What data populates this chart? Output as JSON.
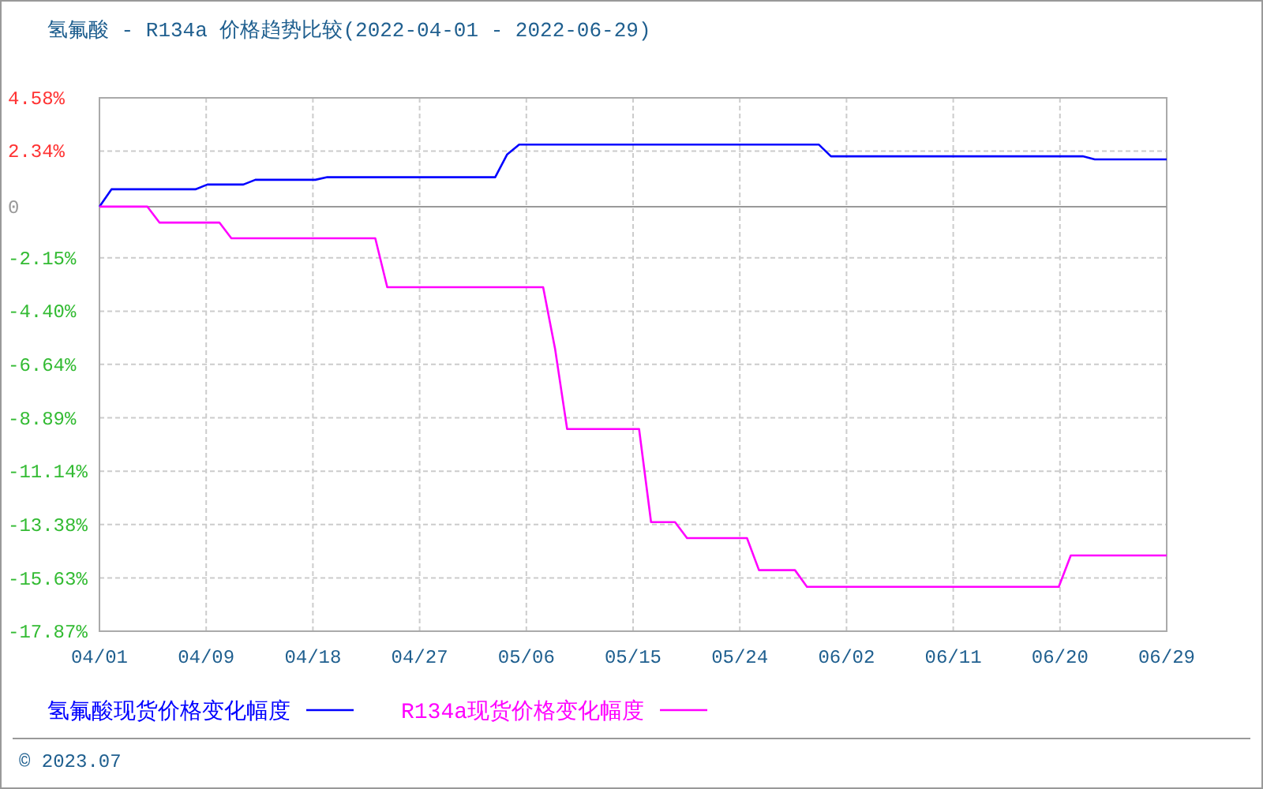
{
  "chart_data": {
    "type": "line",
    "title": "氢氟酸 - R134a 价格趋势比较(2022-04-01 - 2022-06-29)",
    "xlim": [
      "2022-04-01",
      "2022-06-29"
    ],
    "xticks": [
      {
        "value": "2022-04-01",
        "label": "04/01"
      },
      {
        "value": "2022-04-09T21:36",
        "label": "04/09"
      },
      {
        "value": "2022-04-18T19:12",
        "label": "04/18"
      },
      {
        "value": "2022-04-27T16:48",
        "label": "04/27"
      },
      {
        "value": "2022-05-06T14:24",
        "label": "05/06"
      },
      {
        "value": "2022-05-15T12:00",
        "label": "05/15"
      },
      {
        "value": "2022-05-24T09:36",
        "label": "05/24"
      },
      {
        "value": "2022-06-02T07:12",
        "label": "06/02"
      },
      {
        "value": "2022-06-11T04:48",
        "label": "06/11"
      },
      {
        "value": "2022-06-20T02:24",
        "label": "06/20"
      },
      {
        "value": "2022-06-29",
        "label": "06/29"
      }
    ],
    "ylim": [
      -17.87,
      4.58
    ],
    "yticks": [
      {
        "value": 4.58,
        "label": "4.58%"
      },
      {
        "value": 2.34,
        "label": "2.34%"
      },
      {
        "value": -2.15,
        "label": "-2.15%"
      },
      {
        "value": -4.4,
        "label": "-4.40%"
      },
      {
        "value": -6.64,
        "label": "-6.64%"
      },
      {
        "value": -8.89,
        "label": "-8.89%"
      },
      {
        "value": -11.14,
        "label": "-11.14%"
      },
      {
        "value": -13.38,
        "label": "-13.38%"
      },
      {
        "value": -15.63,
        "label": "-15.63%"
      },
      {
        "value": -17.87,
        "label": "-17.87%"
      }
    ],
    "ref_lines": [
      {
        "axis": "y",
        "value": 0,
        "label": "0",
        "color": "#999999"
      }
    ],
    "grid": true,
    "legend": "bottom",
    "series": [
      {
        "name": "氢氟酸现货价格变化幅度",
        "color": "#0000ff",
        "x": [
          "2022-04-01",
          "2022-04-02",
          "2022-04-09",
          "2022-04-10",
          "2022-04-13",
          "2022-04-14",
          "2022-04-19",
          "2022-04-20",
          "2022-05-04",
          "2022-05-05",
          "2022-05-06",
          "2022-05-31",
          "2022-06-01",
          "2022-06-22",
          "2022-06-23",
          "2022-06-29"
        ],
        "values": [
          0,
          0.73,
          0.73,
          0.93,
          0.93,
          1.13,
          1.13,
          1.24,
          1.24,
          2.2,
          2.61,
          2.61,
          2.12,
          2.12,
          1.99,
          1.99
        ]
      },
      {
        "name": "R134a现货价格变化幅度",
        "color": "#ff00ff",
        "x": [
          "2022-04-01",
          "2022-04-05",
          "2022-04-06",
          "2022-04-11",
          "2022-04-12",
          "2022-04-24",
          "2022-04-25",
          "2022-05-08",
          "2022-05-09",
          "2022-05-10",
          "2022-05-16",
          "2022-05-17",
          "2022-05-19",
          "2022-05-20",
          "2022-05-25",
          "2022-05-26",
          "2022-05-29",
          "2022-05-30",
          "2022-06-20",
          "2022-06-21",
          "2022-06-29"
        ],
        "values": [
          0,
          0,
          -0.67,
          -0.67,
          -1.33,
          -1.33,
          -3.39,
          -3.39,
          -6.0,
          -9.36,
          -9.36,
          -13.28,
          -13.28,
          -13.95,
          -13.95,
          -15.3,
          -15.3,
          -16.0,
          -16.0,
          -14.68,
          -14.68
        ]
      }
    ],
    "annotations": [
      "© 2023.07"
    ]
  }
}
